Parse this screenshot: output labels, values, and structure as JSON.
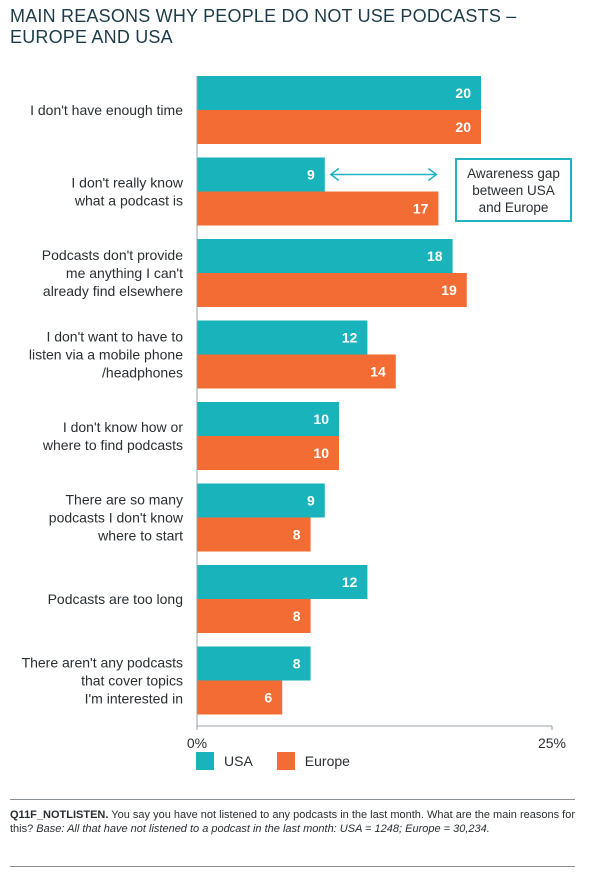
{
  "title_lines": [
    "MAIN REASONS WHY PEOPLE DO NOT USE PODCASTS –",
    "EUROPE AND USA"
  ],
  "colors": {
    "usa": "#19b3bb",
    "europe": "#f26c33",
    "axis": "#9aa0a4",
    "arrow": "#1fb4bf"
  },
  "callout_lines": [
    "Awareness gap",
    "between USA",
    "and Europe"
  ],
  "chart_data": {
    "type": "bar",
    "orientation": "horizontal",
    "categories": [
      [
        "I don't have enough time"
      ],
      [
        "I don't really know",
        "what a podcast is"
      ],
      [
        "Podcasts don't provide",
        "me anything I can't",
        "already find elsewhere"
      ],
      [
        "I don't want to have to",
        "listen via a mobile phone",
        "/headphones"
      ],
      [
        "I don't know how or",
        "where to find podcasts"
      ],
      [
        "There are so many",
        "podcasts I don't know",
        "where to start"
      ],
      [
        "Podcasts are too long"
      ],
      [
        "There aren't any podcasts",
        "that cover topics",
        "I'm interested in"
      ]
    ],
    "series": [
      {
        "name": "USA",
        "values": [
          20,
          9,
          18,
          12,
          10,
          9,
          12,
          8
        ]
      },
      {
        "name": "Europe",
        "values": [
          20,
          17,
          19,
          14,
          10,
          8,
          8,
          6
        ]
      }
    ],
    "xlim": [
      0,
      25
    ],
    "tick_labels": [
      "0%",
      "25%"
    ],
    "grid": false,
    "legend_position": "bottom-left",
    "annotation": {
      "category_index": 1,
      "text": "Awareness gap between USA and Europe"
    }
  },
  "footer": {
    "code": "Q11F_NOTLISTEN.",
    "question": " You say you have not listened to any podcasts in the last month. What are the main reasons for this? ",
    "base": "Base: All that have not listened to a podcast in the last month: USA = 1248; Europe = 30,234."
  }
}
